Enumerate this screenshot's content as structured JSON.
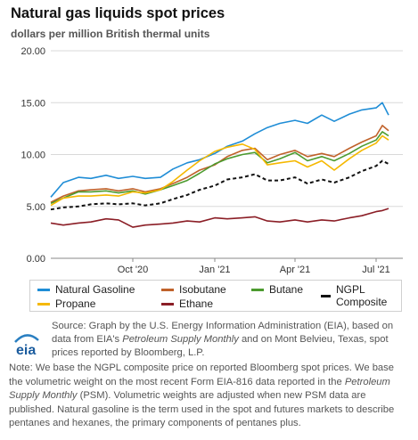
{
  "title": "Natural gas liquids spot prices",
  "subtitle": "dollars per million British thermal units",
  "source": {
    "prefix": "Source: Graph by the U.S. Energy Information Administration (EIA), based on data from EIA's ",
    "psm": "Petroleum Supply Monthly",
    "suffix": " and on Mont Belvieu, Texas, spot prices reported by Bloomberg, L.P."
  },
  "note": {
    "part1": "Note: We base the NGPL composite price on reported Bloomberg spot prices. We base the volumetric weight on the most recent Form EIA-816 data reported in the ",
    "psm": "Petroleum Supply Monthly",
    "part2": " (PSM). Volumetric weights are adjusted when new PSM data are published. Natural gasoline is the term used in the spot and futures markets to describe pentanes and hexanes, the primary components of pentanes plus."
  },
  "logo_text": "eia",
  "chart_data": {
    "type": "line",
    "title": "Natural gas liquids spot prices",
    "ylabel": "dollars per million British thermal units",
    "ylim": [
      0,
      20
    ],
    "yticks": [
      "0.00",
      "5.00",
      "10.00",
      "15.00",
      "20.00"
    ],
    "xlim": [
      "2020-07-01",
      "2021-07-31"
    ],
    "xticks": [
      {
        "date": "2020-10-01",
        "label": "Oct '20"
      },
      {
        "date": "2021-01-01",
        "label": "Jan '21"
      },
      {
        "date": "2021-04-01",
        "label": "Apr '21"
      },
      {
        "date": "2021-07-01",
        "label": "Jul '21"
      }
    ],
    "grid": true,
    "legend_position": "bottom",
    "dates": [
      "2020-07-01",
      "2020-07-15",
      "2020-08-01",
      "2020-08-15",
      "2020-09-01",
      "2020-09-15",
      "2020-10-01",
      "2020-10-15",
      "2020-11-01",
      "2020-11-15",
      "2020-12-01",
      "2020-12-15",
      "2021-01-01",
      "2021-01-15",
      "2021-02-01",
      "2021-02-15",
      "2021-03-01",
      "2021-03-15",
      "2021-04-01",
      "2021-04-15",
      "2021-05-01",
      "2021-05-15",
      "2021-06-01",
      "2021-06-15",
      "2021-07-01",
      "2021-07-08",
      "2021-07-15"
    ],
    "series": [
      {
        "name": "Natural Gasoline",
        "color": "#1f8dd6",
        "dashed": false,
        "values": [
          5.9,
          7.3,
          7.8,
          7.7,
          8.0,
          7.7,
          7.9,
          7.7,
          7.8,
          8.6,
          9.2,
          9.5,
          10.1,
          10.8,
          11.3,
          12.0,
          12.6,
          13.0,
          13.3,
          13.0,
          13.8,
          13.2,
          13.9,
          14.3,
          14.5,
          15.0,
          13.8
        ]
      },
      {
        "name": "Isobutane",
        "color": "#c0622b",
        "dashed": false,
        "values": [
          5.4,
          6.0,
          6.5,
          6.6,
          6.7,
          6.5,
          6.7,
          6.4,
          6.7,
          7.2,
          7.8,
          8.5,
          9.0,
          9.8,
          10.4,
          10.6,
          9.5,
          10.0,
          10.4,
          9.8,
          10.1,
          9.8,
          10.6,
          11.2,
          11.8,
          12.8,
          12.3
        ]
      },
      {
        "name": "Butane",
        "color": "#4c9b2f",
        "dashed": false,
        "values": [
          5.3,
          5.8,
          6.4,
          6.4,
          6.5,
          6.3,
          6.5,
          6.2,
          6.6,
          7.0,
          7.5,
          8.2,
          9.1,
          9.6,
          10.0,
          10.2,
          9.2,
          9.6,
          10.2,
          9.4,
          9.8,
          9.4,
          10.1,
          10.8,
          11.4,
          12.2,
          11.8
        ]
      },
      {
        "name": "NGPL Composite",
        "color": "#111111",
        "dashed": true,
        "values": [
          4.7,
          4.9,
          5.0,
          5.2,
          5.3,
          5.2,
          5.3,
          5.1,
          5.3,
          5.7,
          6.1,
          6.6,
          7.0,
          7.6,
          7.8,
          8.1,
          7.5,
          7.5,
          7.8,
          7.2,
          7.6,
          7.3,
          7.8,
          8.4,
          8.9,
          9.4,
          9.1
        ]
      },
      {
        "name": "Propane",
        "color": "#f5b800",
        "dashed": false,
        "values": [
          5.1,
          5.8,
          6.0,
          6.0,
          6.1,
          6.0,
          6.4,
          6.3,
          6.6,
          7.4,
          8.5,
          9.4,
          10.3,
          10.7,
          11.0,
          10.5,
          9.0,
          9.2,
          9.4,
          8.8,
          9.4,
          8.5,
          9.6,
          10.4,
          11.1,
          11.8,
          11.4
        ]
      },
      {
        "name": "Ethane",
        "color": "#8b1e26",
        "dashed": false,
        "values": [
          3.4,
          3.2,
          3.4,
          3.5,
          3.8,
          3.7,
          3.0,
          3.2,
          3.3,
          3.4,
          3.6,
          3.5,
          3.9,
          3.8,
          3.9,
          4.0,
          3.6,
          3.5,
          3.7,
          3.5,
          3.7,
          3.6,
          3.9,
          4.1,
          4.5,
          4.6,
          4.8
        ]
      }
    ]
  }
}
